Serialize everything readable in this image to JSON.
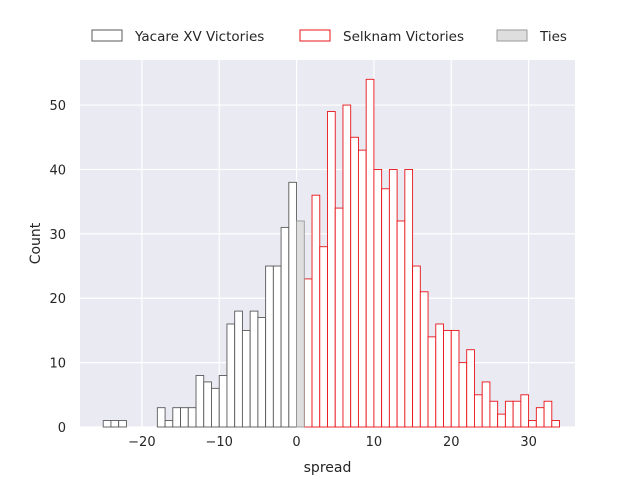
{
  "chart_data": {
    "type": "bar",
    "subtype": "histogram",
    "title": "",
    "xlabel": "spread",
    "ylabel": "Count",
    "xlim": [
      -28,
      36
    ],
    "ylim": [
      0,
      57
    ],
    "grid": true,
    "background": "#eaeaf2",
    "bin_width": 1,
    "x_ticks": [
      -20,
      -10,
      0,
      10,
      20,
      30
    ],
    "x_tick_labels": [
      "−20",
      "−10",
      "0",
      "10",
      "20",
      "30"
    ],
    "y_ticks": [
      0,
      10,
      20,
      30,
      40,
      50
    ],
    "y_tick_labels": [
      "0",
      "10",
      "20",
      "30",
      "40",
      "50"
    ],
    "legend_position": "top",
    "series": [
      {
        "name": "Yacare XV Victories",
        "edge_color": "#5a5a5a",
        "fill_color": "#ffffff",
        "bins": [
          {
            "x": -25,
            "count": 1
          },
          {
            "x": -24,
            "count": 1
          },
          {
            "x": -23,
            "count": 1
          },
          {
            "x": -19,
            "count": 0
          },
          {
            "x": -18,
            "count": 3
          },
          {
            "x": -17,
            "count": 1
          },
          {
            "x": -16,
            "count": 3
          },
          {
            "x": -15,
            "count": 3
          },
          {
            "x": -14,
            "count": 3
          },
          {
            "x": -13,
            "count": 8
          },
          {
            "x": -12,
            "count": 7
          },
          {
            "x": -11,
            "count": 6
          },
          {
            "x": -10,
            "count": 8
          },
          {
            "x": -9,
            "count": 16
          },
          {
            "x": -8,
            "count": 18
          },
          {
            "x": -7,
            "count": 15
          },
          {
            "x": -6,
            "count": 18
          },
          {
            "x": -5,
            "count": 17
          },
          {
            "x": -4,
            "count": 25
          },
          {
            "x": -3,
            "count": 25
          },
          {
            "x": -2,
            "count": 31
          },
          {
            "x": -1,
            "count": 38
          }
        ]
      },
      {
        "name": "Selknam Victories",
        "edge_color": "#e8141a",
        "fill_color": "#ffffff",
        "bins": [
          {
            "x": 1,
            "count": 23
          },
          {
            "x": 2,
            "count": 36
          },
          {
            "x": 3,
            "count": 28
          },
          {
            "x": 4,
            "count": 49
          },
          {
            "x": 5,
            "count": 34
          },
          {
            "x": 6,
            "count": 50
          },
          {
            "x": 7,
            "count": 45
          },
          {
            "x": 8,
            "count": 43
          },
          {
            "x": 9,
            "count": 54
          },
          {
            "x": 10,
            "count": 40
          },
          {
            "x": 11,
            "count": 37
          },
          {
            "x": 12,
            "count": 40
          },
          {
            "x": 13,
            "count": 32
          },
          {
            "x": 14,
            "count": 40
          },
          {
            "x": 15,
            "count": 25
          },
          {
            "x": 16,
            "count": 21
          },
          {
            "x": 17,
            "count": 14
          },
          {
            "x": 18,
            "count": 16
          },
          {
            "x": 19,
            "count": 15
          },
          {
            "x": 20,
            "count": 15
          },
          {
            "x": 21,
            "count": 10
          },
          {
            "x": 22,
            "count": 12
          },
          {
            "x": 23,
            "count": 5
          },
          {
            "x": 24,
            "count": 7
          },
          {
            "x": 25,
            "count": 4
          },
          {
            "x": 26,
            "count": 2
          },
          {
            "x": 27,
            "count": 4
          },
          {
            "x": 28,
            "count": 4
          },
          {
            "x": 29,
            "count": 5
          },
          {
            "x": 30,
            "count": 1
          },
          {
            "x": 31,
            "count": 3
          },
          {
            "x": 32,
            "count": 4
          },
          {
            "x": 33,
            "count": 1
          }
        ]
      },
      {
        "name": "Ties",
        "edge_color": "#9a9a9a",
        "fill_color": "#dedede",
        "bins": [
          {
            "x": 0,
            "count": 32
          }
        ]
      }
    ]
  }
}
